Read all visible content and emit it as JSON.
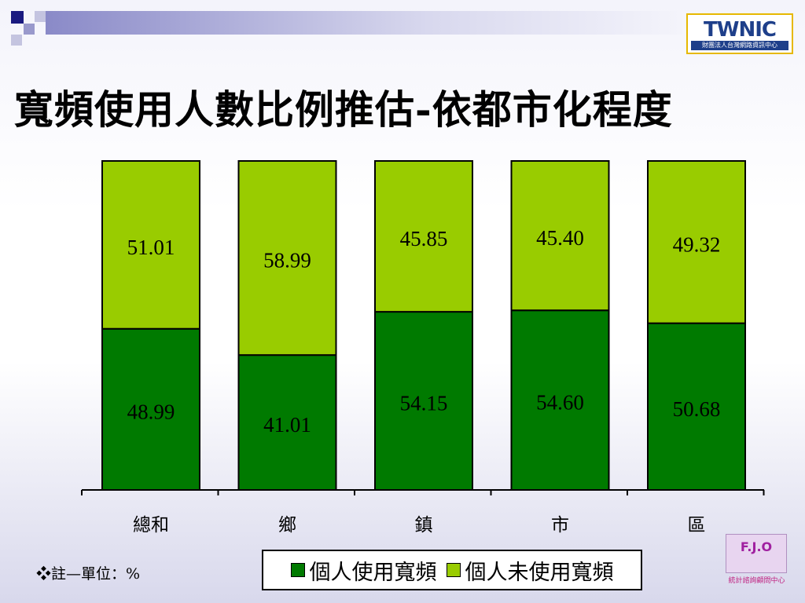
{
  "title": "寬頻使用人數比例推估-依都市化程度",
  "logos": {
    "twnic_word": "TWNIC",
    "twnic_caption": "財團法人台灣網路資訊中心",
    "fjo_mark": "F.J.O",
    "fjo_caption": "統計諮詢顧問中心"
  },
  "note": "❖註—單位：%",
  "colors": {
    "used": "#007a00",
    "unused": "#99cc00"
  },
  "chart_data": {
    "type": "bar",
    "stacked": true,
    "categories": [
      "總和",
      "鄉",
      "鎮",
      "市",
      "區"
    ],
    "series": [
      {
        "name": "個人使用寬頻",
        "values": [
          48.99,
          41.01,
          54.15,
          54.6,
          50.68
        ],
        "labels": [
          "48.99",
          "41.01",
          "54.15",
          "54.60",
          "50.68"
        ]
      },
      {
        "name": "個人未使用寬頻",
        "values": [
          51.01,
          58.99,
          45.85,
          45.4,
          49.32
        ],
        "labels": [
          "51.01",
          "58.99",
          "45.85",
          "45.40",
          "49.32"
        ]
      }
    ],
    "ylim": [
      0,
      100
    ],
    "grid": false,
    "legend": "bottom"
  }
}
